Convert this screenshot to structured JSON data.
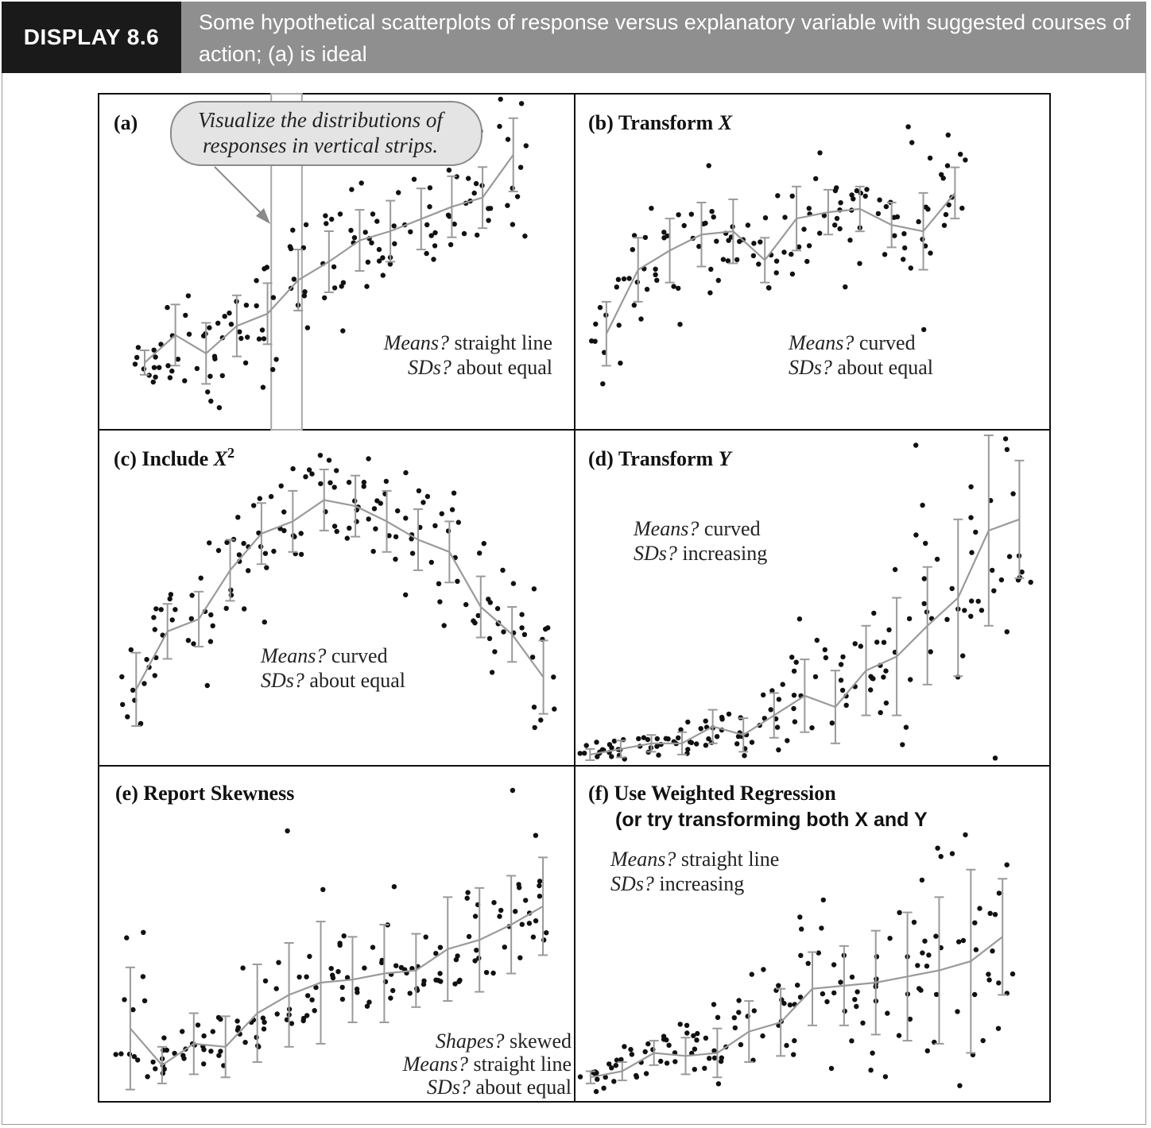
{
  "header": {
    "tag": "DISPLAY 8.6",
    "caption": "Some hypothetical scatterplots of response versus explanatory variable with suggested courses of action; (a) is ideal"
  },
  "colors": {
    "points": "#111111",
    "means_line": "#9a9a9a",
    "error_bars": "#9a9a9a",
    "header_tag_bg": "#1a1a1a",
    "header_caption_bg": "#8f8f8f"
  },
  "callout": {
    "line1": "Visualize the distributions of",
    "line2": "responses in vertical strips."
  },
  "chart_data": [
    {
      "id": "a",
      "type": "scatter",
      "label": "(a)",
      "title_parts": [],
      "annotations": [
        {
          "italic": "Means?",
          "text": " straight line"
        },
        {
          "italic": "SDs?",
          "text": " about equal"
        }
      ],
      "means": [
        [
          0.5,
          1.2
        ],
        [
          1.5,
          2.1
        ],
        [
          2.5,
          1.5
        ],
        [
          3.5,
          2.4
        ],
        [
          4.5,
          2.8
        ],
        [
          5.5,
          3.9
        ],
        [
          6.5,
          4.5
        ],
        [
          7.5,
          5.2
        ],
        [
          8.5,
          5.5
        ],
        [
          9.5,
          5.9
        ],
        [
          10.5,
          6.3
        ],
        [
          11.5,
          6.6
        ],
        [
          12.5,
          8.0
        ]
      ],
      "sds": [
        0.4,
        1.0,
        1.0,
        1.0,
        1.0,
        1.0,
        1.0,
        1.0,
        1.0,
        1.0,
        1.0,
        1.0,
        1.2
      ],
      "vertical_strips": [
        5.5,
        6.5
      ]
    },
    {
      "id": "b",
      "type": "scatter",
      "label": "(b) ",
      "title_parts": [
        {
          "text": "Transform "
        },
        {
          "text": "X",
          "italic": true
        }
      ],
      "annotations": [
        {
          "italic": "Means?",
          "text": " curved"
        },
        {
          "italic": "SDs?",
          "text": " about equal"
        }
      ],
      "means": [
        [
          1.0,
          2.0
        ],
        [
          2.0,
          4.0
        ],
        [
          3.0,
          4.6
        ],
        [
          4.0,
          5.1
        ],
        [
          5.0,
          5.2
        ],
        [
          6.0,
          4.3
        ],
        [
          7.0,
          5.6
        ],
        [
          8.0,
          5.8
        ],
        [
          9.0,
          5.9
        ],
        [
          10.0,
          5.4
        ],
        [
          11.0,
          5.2
        ],
        [
          12.0,
          6.4
        ]
      ],
      "sds": [
        1.0,
        1.0,
        1.0,
        1.0,
        1.0,
        0.7,
        1.0,
        0.7,
        0.7,
        0.7,
        1.2,
        0.8
      ]
    },
    {
      "id": "c",
      "type": "scatter",
      "label": "(c) ",
      "title_parts": [
        {
          "text": "Include "
        },
        {
          "text": "X",
          "italic": true
        },
        {
          "text": "2",
          "sup": true
        }
      ],
      "annotations": [
        {
          "italic": "Means?",
          "text": " curved"
        },
        {
          "italic": "SDs?",
          "text": " about equal"
        }
      ],
      "means": [
        [
          1.0,
          2.5
        ],
        [
          2.0,
          4.4
        ],
        [
          3.0,
          4.8
        ],
        [
          4.0,
          6.4
        ],
        [
          5.0,
          7.6
        ],
        [
          6.0,
          8.0
        ],
        [
          7.0,
          8.7
        ],
        [
          8.0,
          8.5
        ],
        [
          9.0,
          8.0
        ],
        [
          10.0,
          7.4
        ],
        [
          11.0,
          7.0
        ],
        [
          12.0,
          5.2
        ],
        [
          13.0,
          4.3
        ],
        [
          14.0,
          2.9
        ]
      ],
      "sds": [
        1.2,
        0.9,
        0.9,
        1.0,
        1.0,
        1.0,
        1.0,
        1.0,
        1.0,
        1.0,
        1.0,
        1.0,
        0.9,
        1.2
      ]
    },
    {
      "id": "d",
      "type": "scatter",
      "label": "(d) ",
      "title_parts": [
        {
          "text": "Transform "
        },
        {
          "text": "Y",
          "italic": true
        }
      ],
      "annotations": [
        {
          "italic": "Means?",
          "text": " curved"
        },
        {
          "italic": "SDs?",
          "text": " increasing"
        }
      ],
      "means": [
        [
          1.0,
          0.4
        ],
        [
          2.0,
          0.6
        ],
        [
          3.0,
          0.8
        ],
        [
          4.0,
          0.8
        ],
        [
          5.0,
          1.4
        ],
        [
          6.0,
          1.1
        ],
        [
          7.0,
          1.8
        ],
        [
          8.0,
          2.5
        ],
        [
          9.0,
          2.1
        ],
        [
          10.0,
          3.4
        ],
        [
          11.0,
          3.9
        ],
        [
          12.0,
          5.0
        ],
        [
          13.0,
          6.0
        ],
        [
          14.0,
          8.4
        ],
        [
          15.0,
          8.8
        ]
      ],
      "sds": [
        0.2,
        0.3,
        0.3,
        0.4,
        0.6,
        0.6,
        0.8,
        1.3,
        1.3,
        1.6,
        2.1,
        2.1,
        2.8,
        3.4,
        2.1
      ]
    },
    {
      "id": "e",
      "type": "scatter",
      "label": "(e) ",
      "title_parts": [
        {
          "text": "Report Skewness"
        }
      ],
      "annotations": [
        {
          "italic": "Shapes?",
          "text": " skewed"
        },
        {
          "italic": "Means?",
          "text": " straight line"
        },
        {
          "italic": "SDs?",
          "text": " about equal"
        }
      ],
      "means": [
        [
          1.0,
          2.4
        ],
        [
          2.0,
          1.2
        ],
        [
          3.0,
          1.9
        ],
        [
          4.0,
          1.8
        ],
        [
          5.0,
          2.9
        ],
        [
          6.0,
          3.5
        ],
        [
          7.0,
          3.9
        ],
        [
          8.0,
          4.0
        ],
        [
          9.0,
          4.2
        ],
        [
          10.0,
          4.3
        ],
        [
          11.0,
          5.0
        ],
        [
          12.0,
          5.3
        ],
        [
          13.0,
          5.8
        ],
        [
          14.0,
          6.4
        ]
      ],
      "sds": [
        2.0,
        0.6,
        1.0,
        1.0,
        1.6,
        1.7,
        2.0,
        1.4,
        1.6,
        1.2,
        1.7,
        1.7,
        1.6,
        1.6
      ],
      "skewed": true
    },
    {
      "id": "f",
      "type": "scatter",
      "label": "(f) ",
      "title_parts": [
        {
          "text": "Use Weighted Regression"
        }
      ],
      "subtitle": "(or try transforming both X and Y",
      "annotations": [
        {
          "italic": "Means?",
          "text": " straight line"
        },
        {
          "italic": "SDs?",
          "text": " increasing"
        }
      ],
      "means": [
        [
          0.5,
          0.8
        ],
        [
          1.5,
          1.0
        ],
        [
          2.5,
          1.6
        ],
        [
          3.5,
          1.5
        ],
        [
          4.5,
          1.6
        ],
        [
          5.5,
          2.3
        ],
        [
          6.5,
          2.6
        ],
        [
          7.5,
          3.7
        ],
        [
          8.5,
          3.8
        ],
        [
          9.5,
          3.9
        ],
        [
          10.5,
          4.1
        ],
        [
          11.5,
          4.3
        ],
        [
          12.5,
          4.6
        ],
        [
          13.5,
          5.4
        ]
      ],
      "sds": [
        0.2,
        0.3,
        0.4,
        0.6,
        0.8,
        1.0,
        1.1,
        1.2,
        1.3,
        1.7,
        2.1,
        2.4,
        3.0,
        1.9
      ]
    }
  ]
}
